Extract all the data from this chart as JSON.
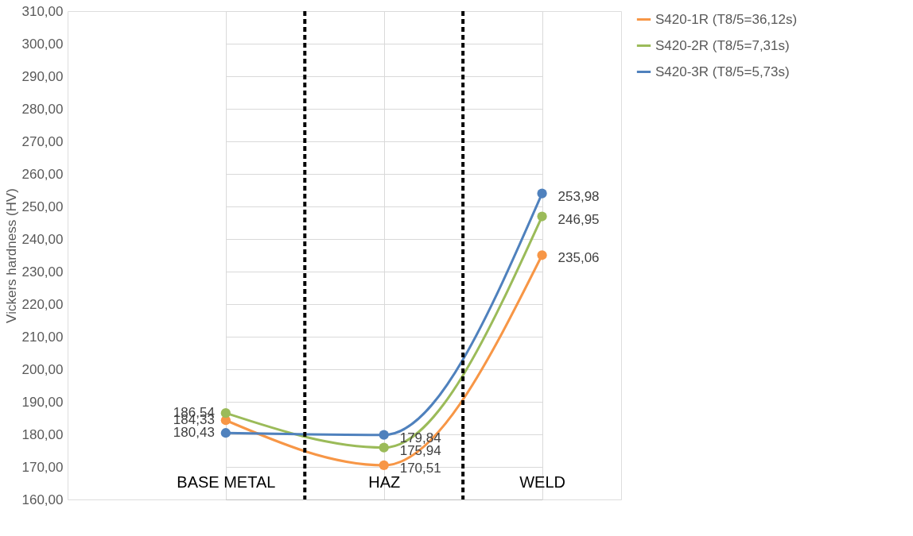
{
  "chart_data": {
    "type": "line",
    "ylabel": "Vickers hardness (HV)",
    "categories": [
      "BASE METAL",
      "HAZ",
      "WELD"
    ],
    "ylim": [
      160,
      310
    ],
    "yticks": [
      {
        "value": 160,
        "label": "160,00"
      },
      {
        "value": 170,
        "label": "170,00"
      },
      {
        "value": 180,
        "label": "180,00"
      },
      {
        "value": 190,
        "label": "190,00"
      },
      {
        "value": 200,
        "label": "200,00"
      },
      {
        "value": 210,
        "label": "210,00"
      },
      {
        "value": 220,
        "label": "220,00"
      },
      {
        "value": 230,
        "label": "230,00"
      },
      {
        "value": 240,
        "label": "240,00"
      },
      {
        "value": 250,
        "label": "250,00"
      },
      {
        "value": 260,
        "label": "260,00"
      },
      {
        "value": 270,
        "label": "270,00"
      },
      {
        "value": 280,
        "label": "280,00"
      },
      {
        "value": 290,
        "label": "290,00"
      },
      {
        "value": 300,
        "label": "300,00"
      },
      {
        "value": 310,
        "label": "310,00"
      }
    ],
    "series": [
      {
        "name": "S420-1R (T8/5=36,12s)",
        "color": "#f79646",
        "values": [
          184.33,
          170.51,
          235.06
        ],
        "value_labels": [
          "184,33",
          "170,51",
          "235,06"
        ]
      },
      {
        "name": "S420-2R (T8/5=7,31s)",
        "color": "#9bbb59",
        "values": [
          186.54,
          175.94,
          246.95
        ],
        "value_labels": [
          "186,54",
          "175,94",
          "246,95"
        ]
      },
      {
        "name": "S420-3R (T8/5=5,73s)",
        "color": "#4f81bd",
        "values": [
          180.43,
          179.84,
          253.98
        ],
        "value_labels": [
          "180,43",
          "179,84",
          "253,98"
        ]
      }
    ],
    "grid": true,
    "legend": "right",
    "marker": "circle",
    "line_style": "solid"
  }
}
